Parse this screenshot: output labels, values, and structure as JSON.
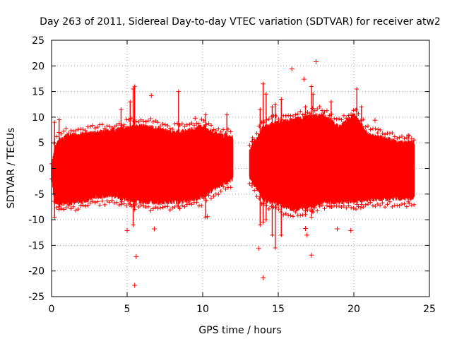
{
  "chart_data": {
    "type": "scatter",
    "title": "Day 263 of 2011, Sidereal Day-to-day VTEC variation (SDTVAR) for receiver atw2",
    "xlabel": "GPS time / hours",
    "ylabel": "SDTVAR / TECUs",
    "xlim": [
      0,
      25
    ],
    "ylim": [
      -25,
      25
    ],
    "xticks": [
      0,
      5,
      10,
      15,
      20,
      25
    ],
    "yticks": [
      -25,
      -20,
      -15,
      -10,
      -5,
      0,
      5,
      10,
      15,
      20,
      25
    ],
    "xtick_labels": [
      "0",
      "5",
      "10",
      "15",
      "20",
      "25"
    ],
    "ytick_labels": [
      "-25",
      "-20",
      "-15",
      "-10",
      "-5",
      "0",
      "5",
      "10",
      "15",
      "20",
      "25"
    ],
    "grid": true,
    "color": "#ff0000",
    "marker": "plus",
    "segments": [
      {
        "x_start": 0.0,
        "x_end": 12.0
      },
      {
        "x_start": 13.1,
        "x_end": 24.0
      }
    ],
    "envelope": [
      {
        "x": 0.0,
        "upper": 0.8,
        "lower": -2.0
      },
      {
        "x": 0.2,
        "upper": 4.5,
        "lower": -7.0
      },
      {
        "x": 0.5,
        "upper": 6.0,
        "lower": -7.5
      },
      {
        "x": 1.0,
        "upper": 6.8,
        "lower": -7.3
      },
      {
        "x": 2.0,
        "upper": 7.2,
        "lower": -7.0
      },
      {
        "x": 3.0,
        "upper": 7.5,
        "lower": -6.0
      },
      {
        "x": 4.0,
        "upper": 7.8,
        "lower": -5.8
      },
      {
        "x": 5.0,
        "upper": 8.5,
        "lower": -6.5
      },
      {
        "x": 6.0,
        "upper": 8.8,
        "lower": -7.0
      },
      {
        "x": 7.0,
        "upper": 8.3,
        "lower": -7.2
      },
      {
        "x": 8.0,
        "upper": 7.5,
        "lower": -7.0
      },
      {
        "x": 9.0,
        "upper": 7.8,
        "lower": -6.8
      },
      {
        "x": 10.0,
        "upper": 8.8,
        "lower": -6.0
      },
      {
        "x": 11.0,
        "upper": 7.0,
        "lower": -4.0
      },
      {
        "x": 12.0,
        "upper": 6.5,
        "lower": -2.5
      },
      {
        "x": 13.1,
        "upper": 4.0,
        "lower": -2.0
      },
      {
        "x": 13.5,
        "upper": 6.0,
        "lower": -4.0
      },
      {
        "x": 14.0,
        "upper": 8.5,
        "lower": -6.5
      },
      {
        "x": 15.0,
        "upper": 9.5,
        "lower": -7.5
      },
      {
        "x": 16.0,
        "upper": 10.0,
        "lower": -8.5
      },
      {
        "x": 17.0,
        "upper": 10.5,
        "lower": -8.0
      },
      {
        "x": 18.0,
        "upper": 11.0,
        "lower": -7.0
      },
      {
        "x": 19.0,
        "upper": 8.5,
        "lower": -7.0
      },
      {
        "x": 20.0,
        "upper": 11.0,
        "lower": -7.0
      },
      {
        "x": 21.0,
        "upper": 7.0,
        "lower": -6.5
      },
      {
        "x": 22.0,
        "upper": 6.5,
        "lower": -6.5
      },
      {
        "x": 23.0,
        "upper": 5.5,
        "lower": -6.3
      },
      {
        "x": 24.0,
        "upper": 5.5,
        "lower": -6.3
      }
    ],
    "spikes": [
      {
        "x": 0.2,
        "y_min": -9.5,
        "y_max": 9.0
      },
      {
        "x": 0.5,
        "y_min": -8.0,
        "y_max": 9.5
      },
      {
        "x": 4.6,
        "y_min": -7.0,
        "y_max": 11.5
      },
      {
        "x": 5.2,
        "y_min": -7.0,
        "y_max": 13.0
      },
      {
        "x": 5.4,
        "y_min": -11.0,
        "y_max": 15.5
      },
      {
        "x": 5.5,
        "y_min": -8.0,
        "y_max": 16.0
      },
      {
        "x": 8.4,
        "y_min": -7.5,
        "y_max": 15.0
      },
      {
        "x": 10.2,
        "y_min": -9.5,
        "y_max": 10.5
      },
      {
        "x": 11.6,
        "y_min": -3.0,
        "y_max": 10.5
      },
      {
        "x": 13.3,
        "y_min": -2.8,
        "y_max": 6.0
      },
      {
        "x": 13.8,
        "y_min": -11.0,
        "y_max": 11.5
      },
      {
        "x": 14.0,
        "y_min": -10.5,
        "y_max": 16.5
      },
      {
        "x": 14.2,
        "y_min": -10.0,
        "y_max": 14.5
      },
      {
        "x": 14.6,
        "y_min": -13.0,
        "y_max": 12.0
      },
      {
        "x": 14.8,
        "y_min": -15.5,
        "y_max": 12.5
      },
      {
        "x": 15.2,
        "y_min": -13.0,
        "y_max": 13.5
      },
      {
        "x": 16.8,
        "y_min": -9.0,
        "y_max": 12.0
      },
      {
        "x": 17.2,
        "y_min": -9.5,
        "y_max": 16.0
      },
      {
        "x": 17.3,
        "y_min": -8.5,
        "y_max": 14.5
      },
      {
        "x": 18.5,
        "y_min": -7.5,
        "y_max": 13.0
      },
      {
        "x": 20.2,
        "y_min": -7.0,
        "y_max": 15.5
      },
      {
        "x": 20.5,
        "y_min": -7.0,
        "y_max": 12.0
      },
      {
        "x": 23.6,
        "y_min": -6.5,
        "y_max": 6.5
      }
    ],
    "outliers": [
      [
        5.5,
        -22.8
      ],
      [
        5.6,
        -17.2
      ],
      [
        5.0,
        -12.1
      ],
      [
        6.6,
        14.2
      ],
      [
        6.8,
        -11.8
      ],
      [
        9.5,
        9.8
      ],
      [
        10.3,
        -9.4
      ],
      [
        14.0,
        -21.3
      ],
      [
        13.7,
        -15.6
      ],
      [
        15.9,
        19.4
      ],
      [
        16.7,
        17.4
      ],
      [
        17.5,
        20.8
      ],
      [
        17.2,
        -16.9
      ],
      [
        16.9,
        -13.0
      ],
      [
        16.8,
        -11.7
      ],
      [
        18.9,
        -11.8
      ],
      [
        19.8,
        -12.1
      ],
      [
        21.6,
        7.6
      ],
      [
        21.4,
        9.4
      ],
      [
        23.7,
        3.4
      ]
    ]
  }
}
